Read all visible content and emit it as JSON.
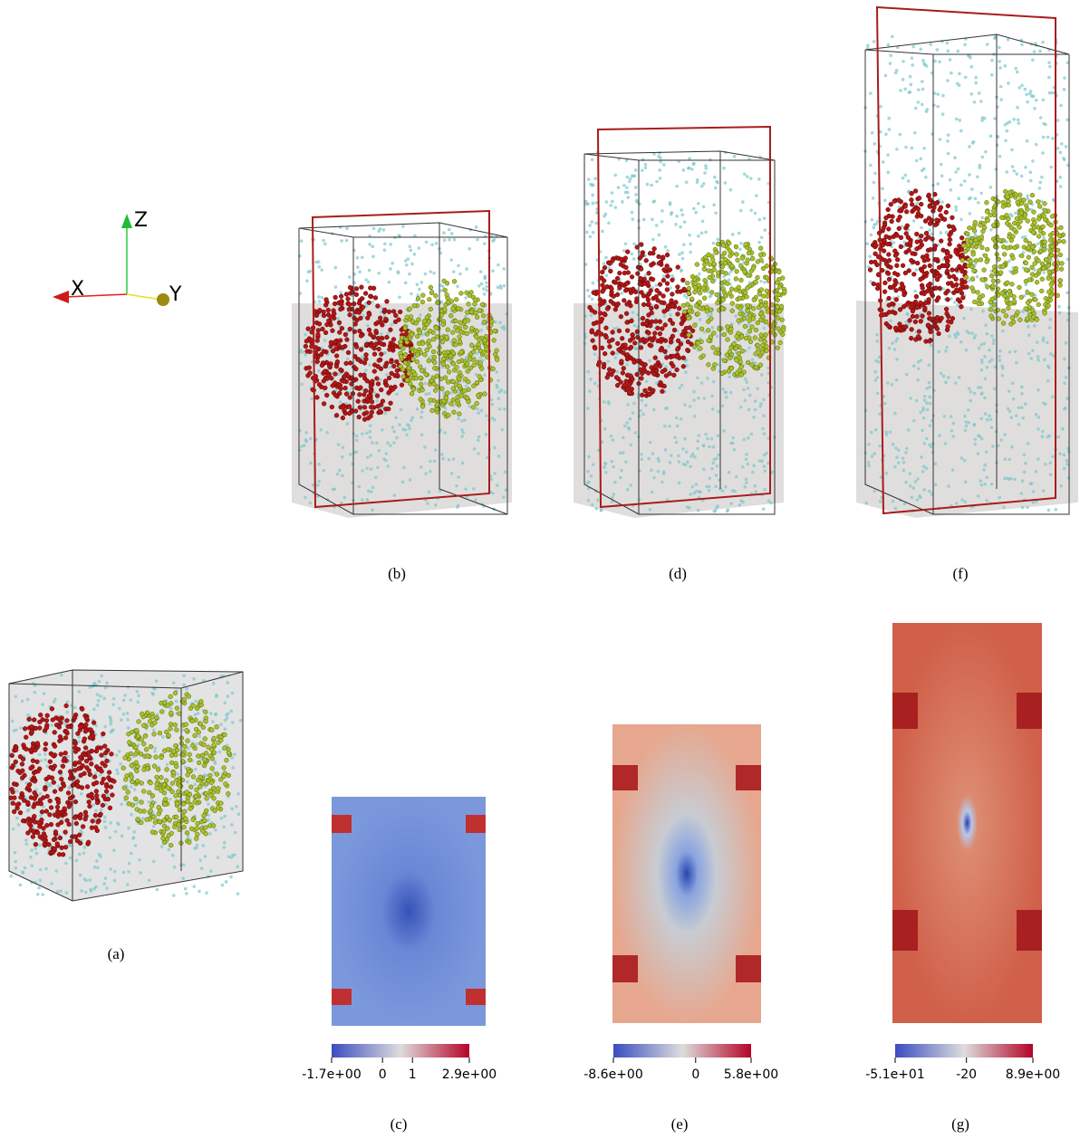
{
  "axes": {
    "x": "X",
    "y": "Y",
    "z": "Z"
  },
  "labels": {
    "a": "(a)",
    "b": "(b)",
    "c": "(c)",
    "d": "(d)",
    "e": "(e)",
    "f": "(f)",
    "g": "(g)"
  },
  "colorbars": [
    {
      "lim": [
        -1.7,
        2.9
      ],
      "ticks": [
        {
          "value": -1.7,
          "label": "-1.7e+00"
        },
        0,
        1,
        {
          "value": 2.9,
          "label": "2.9e+00"
        }
      ]
    },
    {
      "lim": [
        -8.6,
        5.8
      ],
      "ticks": [
        {
          "value": -8.6,
          "label": "-8.6e+00"
        },
        0,
        {
          "value": 5.8,
          "label": "5.8e+00"
        }
      ]
    },
    {
      "lim": [
        -51,
        8.9
      ],
      "ticks": [
        {
          "value": -51,
          "label": "-5.1e+01"
        },
        -20,
        {
          "value": 8.9,
          "label": "8.9e+00"
        }
      ]
    }
  ]
}
